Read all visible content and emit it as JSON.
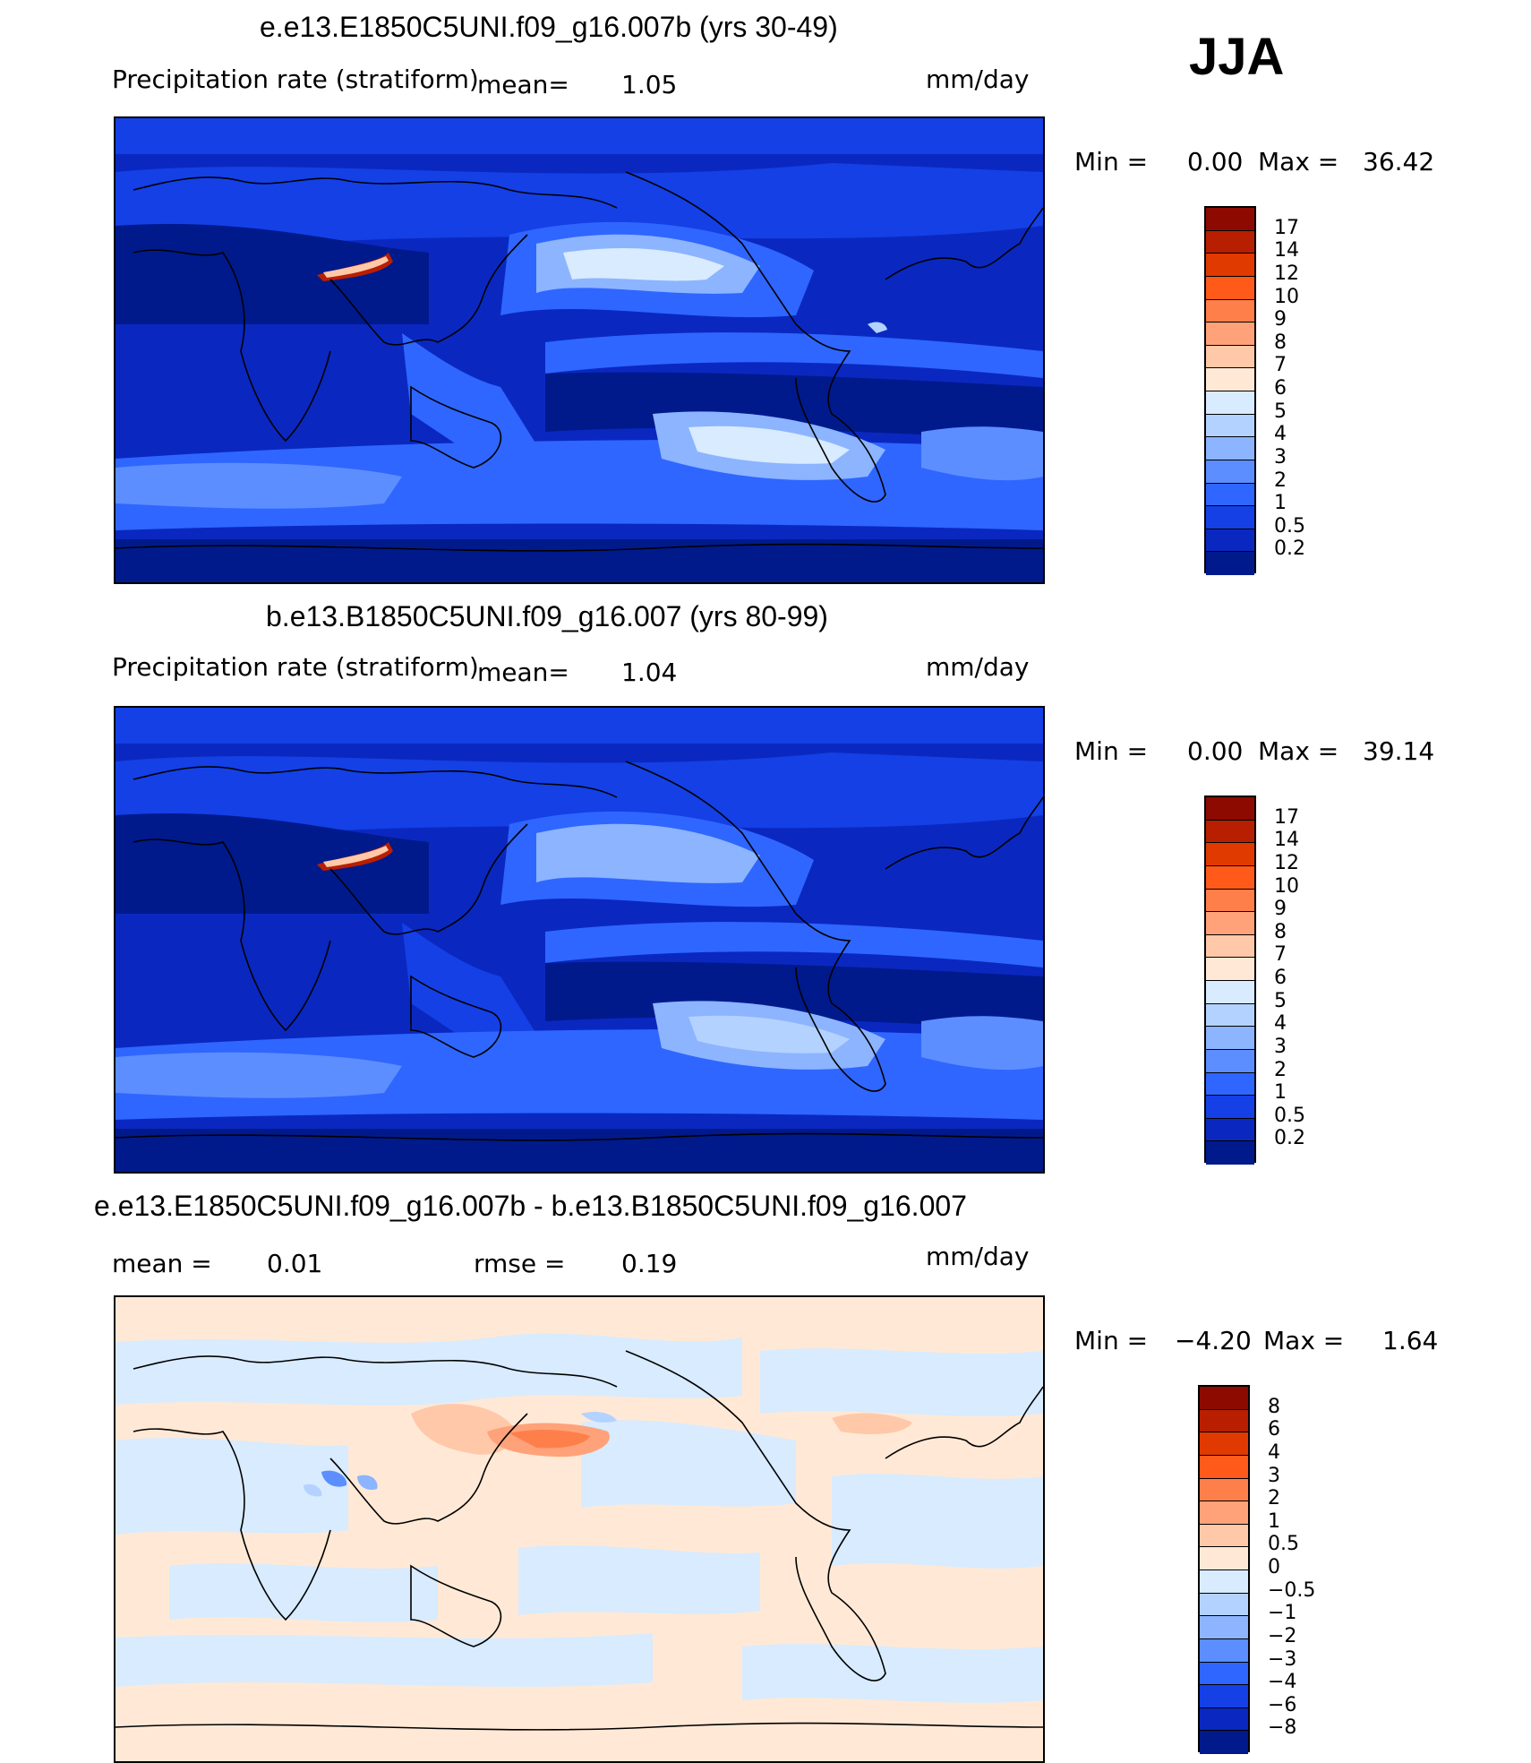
{
  "season": "JJA",
  "units": "mm/day",
  "panels": [
    {
      "title": "e.e13.E1850C5UNI.f09_g16.007b (yrs 30-49)",
      "variable": "Precipitation rate (stratiform)",
      "mean_label": "mean=",
      "mean_value": "1.05",
      "units": "mm/day",
      "min_label": "Min =",
      "min_value": "0.00",
      "max_label": "Max =",
      "max_value": "36.42"
    },
    {
      "title": "b.e13.B1850C5UNI.f09_g16.007 (yrs 80-99)",
      "variable": "Precipitation rate (stratiform)",
      "mean_label": "mean=",
      "mean_value": "1.04",
      "units": "mm/day",
      "min_label": "Min =",
      "min_value": "0.00",
      "max_label": "Max =",
      "max_value": "39.14"
    },
    {
      "title": "e.e13.E1850C5UNI.f09_g16.007b - b.e13.B1850C5UNI.f09_g16.007",
      "mean_label": "mean =",
      "mean_value": "0.01",
      "rmse_label": "rmse =",
      "rmse_value": "0.19",
      "units": "mm/day",
      "min_label": "Min =",
      "min_value": "−4.20",
      "max_label": "Max =",
      "max_value": "1.64"
    }
  ],
  "colorbar_levels": [
    "17",
    "14",
    "12",
    "10",
    "9",
    "8",
    "7",
    "6",
    "5",
    "4",
    "3",
    "2",
    "1",
    "0.5",
    "0.2"
  ],
  "colorbar_colors": [
    "#8c0a00",
    "#b81f00",
    "#e03a00",
    "#ff5a1a",
    "#ff7f4a",
    "#ffa27a",
    "#ffc8a8",
    "#ffe9d6",
    "#d8ebff",
    "#b4d2ff",
    "#8cb4ff",
    "#5c8eff",
    "#2f66ff",
    "#1440e6",
    "#0a28c0",
    "#001a8c"
  ],
  "diff_levels": [
    "8",
    "6",
    "4",
    "3",
    "2",
    "1",
    "0.5",
    "0",
    "−0.5",
    "−1",
    "−2",
    "−3",
    "−4",
    "−6",
    "−8"
  ],
  "diff_colors": [
    "#8c0a00",
    "#b81f00",
    "#e03a00",
    "#ff5a1a",
    "#ff7f4a",
    "#ffa27a",
    "#ffc8a8",
    "#ffe9d6",
    "#d8ebff",
    "#b4d2ff",
    "#8cb4ff",
    "#5c8eff",
    "#2f66ff",
    "#1440e6",
    "#0a28c0",
    "#001a8c"
  ]
}
